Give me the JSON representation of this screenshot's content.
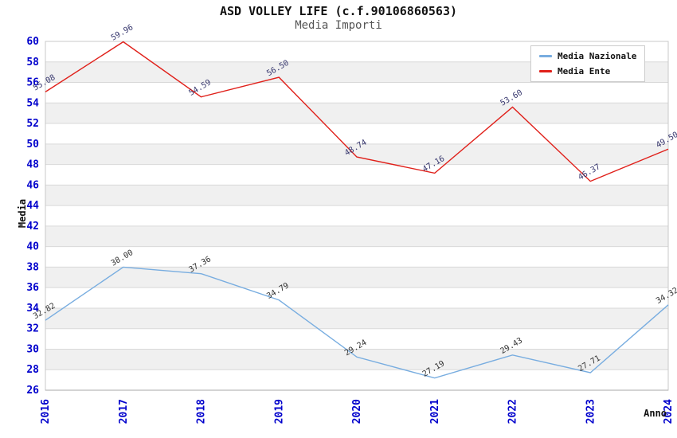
{
  "title": "ASD VOLLEY LIFE (c.f.90106860563)",
  "subtitle": "Media Importi",
  "chart_data": {
    "type": "line",
    "categories": [
      "2016",
      "2017",
      "2018",
      "2019",
      "2020",
      "2021",
      "2022",
      "2023",
      "2024"
    ],
    "series": [
      {
        "name": "Media Nazionale",
        "values": [
          32.82,
          38.0,
          37.36,
          34.79,
          29.24,
          27.19,
          29.43,
          27.71,
          34.32
        ],
        "color": "#78ade0",
        "label_color": "#333333"
      },
      {
        "name": "Media Ente",
        "values": [
          55.08,
          59.96,
          54.59,
          56.5,
          48.74,
          47.16,
          53.6,
          46.37,
          49.5
        ],
        "color": "#e0201a",
        "label_color": "#37376e"
      }
    ],
    "xlabel": "Anno",
    "ylabel": "Media",
    "ylim": [
      26,
      60
    ],
    "ytick_step": 2,
    "grid": true,
    "legend_position": "top-right",
    "tick_color": "#0000cc",
    "band_color": "#f0f0f0",
    "grid_color": "#d9d9d9",
    "border_color": "#c8c8c8",
    "axis_color": "#aaaaaa"
  }
}
